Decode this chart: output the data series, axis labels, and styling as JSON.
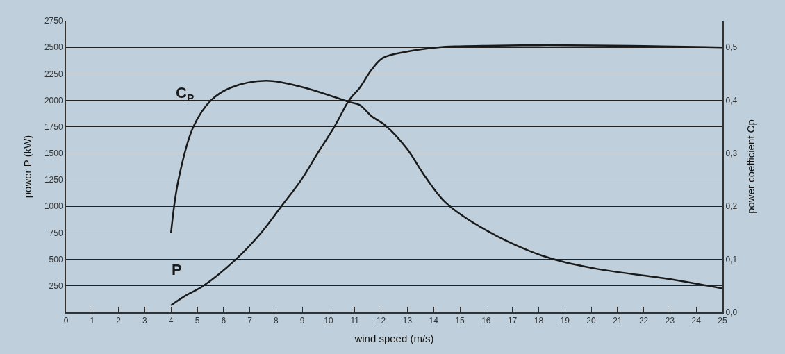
{
  "chart_data": {
    "type": "line",
    "xlabel": "wind speed (m/s)",
    "ylabel": "power P (kW)",
    "y2label": "power coefficient Cp",
    "series": [
      {
        "name": "P",
        "color": "#1a1a1a",
        "x": [
          4,
          4.5,
          5.23,
          6.47,
          7.43,
          8.2,
          8.96,
          9.58,
          10.22,
          10.78,
          11.19,
          11.64,
          12.07,
          13,
          14.16,
          15,
          16,
          18,
          20,
          22,
          24,
          25
        ],
        "values": [
          65,
          150,
          250,
          500,
          750,
          1000,
          1250,
          1500,
          1750,
          2000,
          2120,
          2290,
          2400,
          2460,
          2500,
          2510,
          2515,
          2520,
          2518,
          2512,
          2505,
          2500
        ]
      },
      {
        "name": "C$_{P}$",
        "color": "#1a1a1a",
        "axis": "y2",
        "x": [
          4,
          4.27,
          4.85,
          5.52,
          6.28,
          7.62,
          9,
          10.78,
          11.19,
          11.64,
          12.18,
          12.98,
          13.68,
          14.46,
          15.96,
          18.13,
          20.12,
          23.1,
          25
        ],
        "values": [
          0.15,
          0.247,
          0.35,
          0.4,
          0.424,
          0.437,
          0.425,
          0.397,
          0.391,
          0.37,
          0.352,
          0.309,
          0.256,
          0.207,
          0.156,
          0.107,
          0.083,
          0.062,
          0.045
        ]
      }
    ],
    "xlim": [
      0,
      25
    ],
    "xticks": [
      0,
      1,
      2,
      3,
      4,
      5,
      6,
      7,
      8,
      9,
      10,
      11,
      12,
      13,
      14,
      15,
      16,
      17,
      18,
      19,
      20,
      21,
      22,
      23,
      24,
      25
    ],
    "ylim": [
      0,
      2750
    ],
    "yticks": [
      250,
      500,
      750,
      1000,
      1250,
      1500,
      1750,
      2000,
      2250,
      2500,
      2750
    ],
    "y2lim": [
      0,
      0.55
    ],
    "y2ticks": [
      {
        "value": 0,
        "label": "0,0"
      },
      {
        "value": 0.1,
        "label": "0,1"
      },
      {
        "value": 0.2,
        "label": "0,2"
      },
      {
        "value": 0.3,
        "label": "0,3"
      },
      {
        "value": 0.4,
        "label": "0,4"
      },
      {
        "value": 0.5,
        "label": "0,5"
      }
    ],
    "grid": "y",
    "legend": false
  }
}
